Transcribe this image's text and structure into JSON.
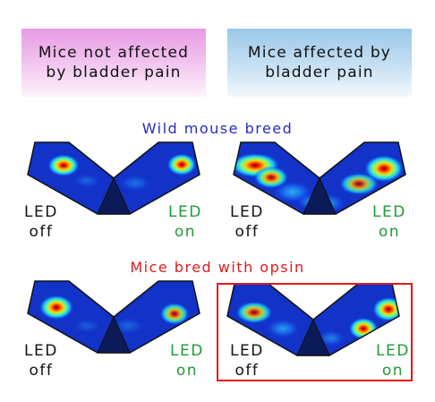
{
  "headers": {
    "left": [
      "Mice not affected",
      "by bladder pain"
    ],
    "right": [
      "Mice affected by",
      "bladder pain"
    ]
  },
  "sections": {
    "wild": "Wild mouse breed",
    "opsin": "Mice bred with opsin"
  },
  "labels": {
    "led": "LED",
    "off": "off",
    "on": "on"
  },
  "colors": {
    "header_left": "#e79ae3",
    "header_right": "#9ac8e8",
    "wild_title": "#2a2ac4",
    "opsin_title": "#e01a1a",
    "led_off": "#111111",
    "led_on": "#1f9a3a",
    "highlight_border": "#e01a1a"
  }
}
